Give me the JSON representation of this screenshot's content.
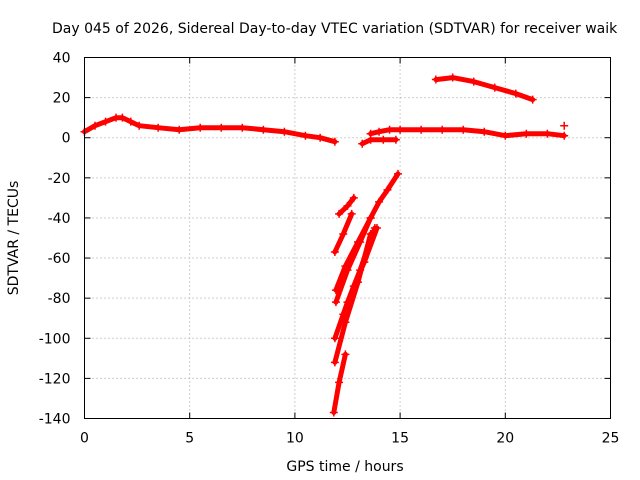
{
  "chart_data": {
    "type": "scatter",
    "title": "Day 045 of 2026, Sidereal Day-to-day VTEC variation (SDTVAR) for receiver waik",
    "xlabel": "GPS time / hours",
    "ylabel": "SDTVAR / TECUs",
    "xlim": [
      0,
      25
    ],
    "ylim": [
      -140,
      40
    ],
    "xticks": [
      0,
      5,
      10,
      15,
      20,
      25
    ],
    "yticks": [
      -140,
      -120,
      -100,
      -80,
      -60,
      -40,
      -20,
      0,
      20,
      40
    ],
    "xtick_labels": [
      "0",
      "5",
      "10",
      "15",
      "20",
      "25"
    ],
    "ytick_labels": [
      "-140",
      "-120",
      "-100",
      "-80",
      "-60",
      "-40",
      "-20",
      "0",
      "20",
      "40"
    ],
    "grid": true,
    "legend": "none",
    "marker": "+",
    "color": "#ff0000",
    "series": [
      {
        "name": "trace-1",
        "x": [
          0,
          0.5,
          1.0,
          1.5,
          1.8,
          2.2,
          2.6,
          3.5,
          4.5,
          5.5,
          6.5,
          7.5,
          8.5,
          9.5,
          10.5,
          11.2,
          11.9
        ],
        "y": [
          3,
          6,
          8,
          10,
          10,
          8,
          6,
          5,
          4,
          5,
          5,
          5,
          4,
          3,
          1,
          0,
          -2
        ]
      },
      {
        "name": "trace-2",
        "x": [
          13.6,
          14.0,
          14.5,
          15.0,
          16.0,
          17.0,
          18.0,
          19.0,
          20.0,
          21.0,
          22.0,
          22.8
        ],
        "y": [
          2,
          3,
          4,
          4,
          4,
          4,
          4,
          3,
          1,
          2,
          2,
          1
        ]
      },
      {
        "name": "trace-3",
        "x": [
          13.2,
          13.6,
          14.2,
          14.8
        ],
        "y": [
          -3,
          -1,
          -1,
          -1
        ]
      },
      {
        "name": "trace-4",
        "x": [
          16.7,
          17.5,
          18.5,
          19.5,
          20.5,
          21.3
        ],
        "y": [
          29,
          30,
          28,
          25,
          22,
          19
        ]
      },
      {
        "name": "trace-5",
        "x": [
          12.1,
          12.5,
          12.8
        ],
        "y": [
          -38,
          -34,
          -30
        ]
      },
      {
        "name": "trace-6",
        "x": [
          11.9,
          12.3,
          12.7
        ],
        "y": [
          -57,
          -48,
          -38
        ]
      },
      {
        "name": "trace-7",
        "x": [
          11.95,
          12.4,
          13.0,
          13.6,
          14.0,
          14.4,
          14.9
        ],
        "y": [
          -76,
          -64,
          -52,
          -40,
          -32,
          -26,
          -18
        ]
      },
      {
        "name": "trace-8",
        "x": [
          11.95,
          12.5,
          13.1,
          13.6
        ],
        "y": [
          -82,
          -66,
          -52,
          -40
        ]
      },
      {
        "name": "trace-9",
        "x": [
          11.9,
          12.4,
          13.0,
          13.6
        ],
        "y": [
          -112,
          -92,
          -72,
          -48
        ]
      },
      {
        "name": "trace-10",
        "x": [
          11.9,
          12.5,
          13.1,
          13.8
        ],
        "y": [
          -100,
          -82,
          -66,
          -45
        ]
      },
      {
        "name": "trace-11",
        "x": [
          12.3,
          12.8,
          13.3,
          13.9
        ],
        "y": [
          -88,
          -74,
          -62,
          -45
        ]
      },
      {
        "name": "trace-12",
        "x": [
          11.85,
          12.1,
          12.4
        ],
        "y": [
          -137,
          -122,
          -108
        ]
      },
      {
        "name": "trace-13",
        "x": [
          22.8
        ],
        "y": [
          6
        ]
      }
    ]
  }
}
